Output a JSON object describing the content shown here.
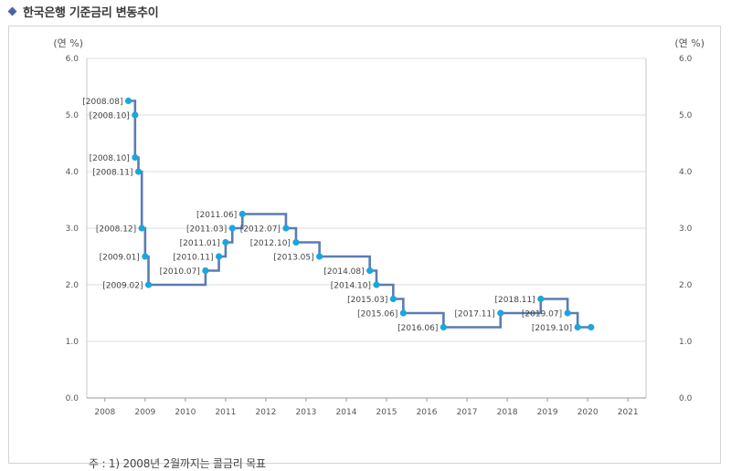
{
  "header": {
    "title": "한국은행 기준금리 변동추이",
    "bullet_icon": "diamond-bullet-icon"
  },
  "footnote": "주 : 1) 2008년 2월까지는 콜금리 목표",
  "chart_data": {
    "type": "line",
    "step": true,
    "title": "",
    "xlabel": "",
    "ylabel": "(연 %)",
    "ylabel_right": "(연 %)",
    "xlim": [
      2007.55,
      2021.45
    ],
    "ylim": [
      0.0,
      6.0
    ],
    "x_ticks": [
      "2008",
      "2009",
      "2010",
      "2011",
      "2012",
      "2013",
      "2014",
      "2015",
      "2016",
      "2017",
      "2018",
      "2019",
      "2020",
      "2021"
    ],
    "y_ticks": [
      "0.0",
      "1.0",
      "2.0",
      "3.0",
      "4.0",
      "5.0",
      "6.0"
    ],
    "grid": "horizontal",
    "line_color": "#5b7cb2",
    "marker_color": "#1aa6df",
    "points": [
      {
        "date": "2008.08",
        "value": 5.25,
        "label": "[2008.08]"
      },
      {
        "date": "2008.10",
        "value": 5.0,
        "label": "[2008.10]"
      },
      {
        "date": "2008.10",
        "value": 4.25,
        "label": "[2008.10]"
      },
      {
        "date": "2008.11",
        "value": 4.0,
        "label": "[2008.11]"
      },
      {
        "date": "2008.12",
        "value": 3.0,
        "label": "[2008.12]"
      },
      {
        "date": "2009.01",
        "value": 2.5,
        "label": "[2009.01]"
      },
      {
        "date": "2009.02",
        "value": 2.0,
        "label": "[2009.02]"
      },
      {
        "date": "2010.07",
        "value": 2.25,
        "label": "[2010.07]"
      },
      {
        "date": "2010.11",
        "value": 2.5,
        "label": "[2010.11]"
      },
      {
        "date": "2011.01",
        "value": 2.75,
        "label": "[2011.01]"
      },
      {
        "date": "2011.03",
        "value": 3.0,
        "label": "[2011.03]"
      },
      {
        "date": "2011.06",
        "value": 3.25,
        "label": "[2011.06]"
      },
      {
        "date": "2012.07",
        "value": 3.0,
        "label": "[2012.07]"
      },
      {
        "date": "2012.10",
        "value": 2.75,
        "label": "[2012.10]"
      },
      {
        "date": "2013.05",
        "value": 2.5,
        "label": "[2013.05]"
      },
      {
        "date": "2014.08",
        "value": 2.25,
        "label": "[2014.08]"
      },
      {
        "date": "2014.10",
        "value": 2.0,
        "label": "[2014.10]"
      },
      {
        "date": "2015.03",
        "value": 1.75,
        "label": "[2015.03]"
      },
      {
        "date": "2015.06",
        "value": 1.5,
        "label": "[2015.06]"
      },
      {
        "date": "2016.06",
        "value": 1.25,
        "label": "[2016.06]"
      },
      {
        "date": "2017.11",
        "value": 1.5,
        "label": "[2017.11]"
      },
      {
        "date": "2018.11",
        "value": 1.75,
        "label": "[2018.11]"
      },
      {
        "date": "2019.07",
        "value": 1.5,
        "label": "[2019.07]"
      },
      {
        "date": "2019.10",
        "value": 1.25,
        "label": "[2019.10]"
      },
      {
        "date": "2020.02",
        "value": 1.25,
        "label": ""
      }
    ]
  }
}
